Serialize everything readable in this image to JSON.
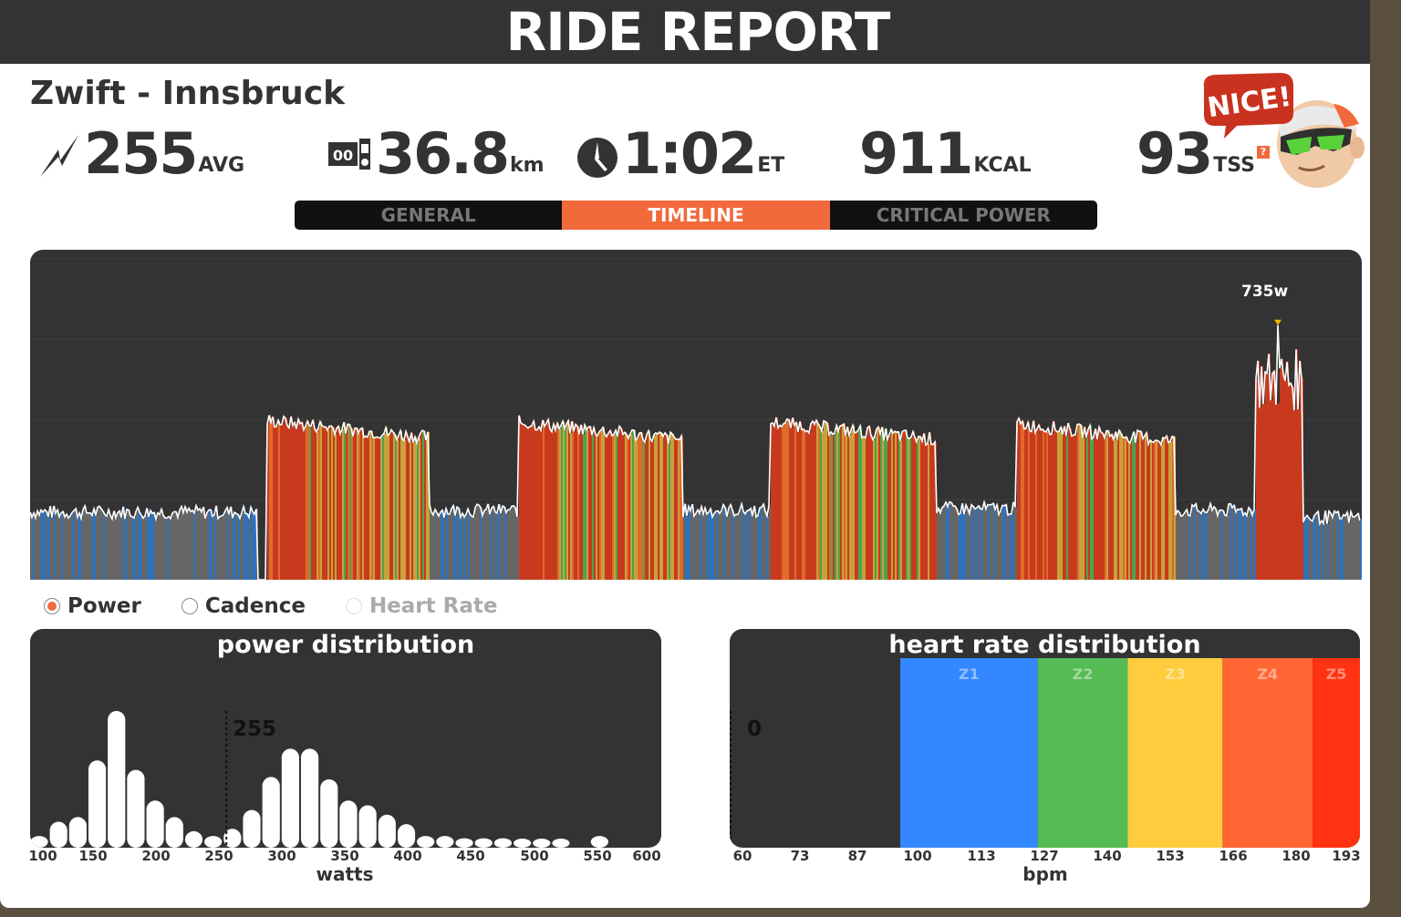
{
  "header": {
    "title": "RIDE REPORT"
  },
  "route": {
    "name": "Zwift - Innsbruck"
  },
  "stats": [
    {
      "icon": "lightning-icon",
      "value": "255",
      "unit": "AVG"
    },
    {
      "icon": "odometer-icon",
      "value": "36.8",
      "unit": "km"
    },
    {
      "icon": "clock-icon",
      "value": "1:02",
      "unit": "ET"
    },
    {
      "icon": "",
      "value": "911",
      "unit": "KCAL"
    },
    {
      "icon": "help-icon",
      "value": "93",
      "unit": "TSS"
    }
  ],
  "badge": {
    "text": "NICE!"
  },
  "tabs": [
    {
      "label": "GENERAL",
      "active": false
    },
    {
      "label": "TIMELINE",
      "active": true
    },
    {
      "label": "CRITICAL POWER",
      "active": false
    }
  ],
  "timeline": {
    "peak_label": "735w",
    "peak_value": 735,
    "zone_colors": {
      "z1": "#666666",
      "z2": "#2f72bb",
      "z3": "#4ea34e",
      "z4": "#c7a23a",
      "z5": "#e06a2a",
      "z6": "#c83a1e"
    },
    "segments": [
      {
        "start": 0.0,
        "end": 0.17,
        "level": 195,
        "zone": "recovery"
      },
      {
        "start": 0.178,
        "end": 0.3,
        "level": 460,
        "zone": "hard"
      },
      {
        "start": 0.3,
        "end": 0.366,
        "level": 200,
        "zone": "recovery"
      },
      {
        "start": 0.366,
        "end": 0.49,
        "level": 455,
        "zone": "hard"
      },
      {
        "start": 0.49,
        "end": 0.556,
        "level": 200,
        "zone": "recovery"
      },
      {
        "start": 0.556,
        "end": 0.68,
        "level": 455,
        "zone": "hard"
      },
      {
        "start": 0.68,
        "end": 0.74,
        "level": 205,
        "zone": "recovery"
      },
      {
        "start": 0.74,
        "end": 0.86,
        "level": 450,
        "zone": "hard"
      },
      {
        "start": 0.86,
        "end": 0.92,
        "level": 200,
        "zone": "recovery"
      },
      {
        "start": 0.92,
        "end": 0.955,
        "level": 540,
        "zone": "sprint"
      },
      {
        "start": 0.955,
        "end": 1.0,
        "level": 180,
        "zone": "recovery"
      }
    ]
  },
  "metric_toggle": [
    {
      "label": "Power",
      "selected": true,
      "enabled": true
    },
    {
      "label": "Cadence",
      "selected": false,
      "enabled": true
    },
    {
      "label": "Heart Rate",
      "selected": false,
      "enabled": false
    }
  ],
  "chart_data": [
    {
      "type": "bar",
      "title": "power distribution",
      "xlabel": "watts",
      "ylabel": "",
      "xlim": [
        100,
        600
      ],
      "x_ticks": [
        "100",
        "150",
        "200",
        "250",
        "300",
        "350",
        "400",
        "450",
        "500",
        "550",
        "600"
      ],
      "bins_x": [
        100,
        116,
        132,
        148,
        164,
        180,
        196,
        212,
        228,
        244,
        260,
        276,
        292,
        308,
        324,
        340,
        356,
        372,
        388,
        404,
        420,
        436,
        452,
        468,
        484,
        500,
        516,
        532,
        548,
        564
      ],
      "values": [
        5,
        11,
        13,
        37,
        58,
        33,
        20,
        13,
        7,
        5,
        8,
        16,
        30,
        42,
        42,
        29,
        20,
        18,
        14,
        10,
        5,
        5,
        4,
        4,
        4,
        3,
        3,
        3,
        0,
        5
      ],
      "average_marker": {
        "x": 255,
        "label": "255"
      },
      "bar_color": "#ffffff"
    },
    {
      "type": "bar",
      "title": "heart rate distribution",
      "xlabel": "bpm",
      "ylabel": "",
      "xlim": [
        60,
        193
      ],
      "x_ticks": [
        "60",
        "73",
        "87",
        "100",
        "113",
        "127",
        "140",
        "153",
        "166",
        "180",
        "193"
      ],
      "average_marker": {
        "x": 60,
        "label": "0"
      },
      "zones": [
        {
          "name": "Z1",
          "from": 96,
          "to": 125,
          "color": "#3388ff"
        },
        {
          "name": "Z2",
          "from": 125,
          "to": 144,
          "color": "#55bb55"
        },
        {
          "name": "Z3",
          "from": 144,
          "to": 164,
          "color": "#ffcc3d"
        },
        {
          "name": "Z4",
          "from": 164,
          "to": 183,
          "color": "#ff6633"
        },
        {
          "name": "Z5",
          "from": 183,
          "to": 193,
          "color": "#ff3311"
        }
      ]
    }
  ]
}
